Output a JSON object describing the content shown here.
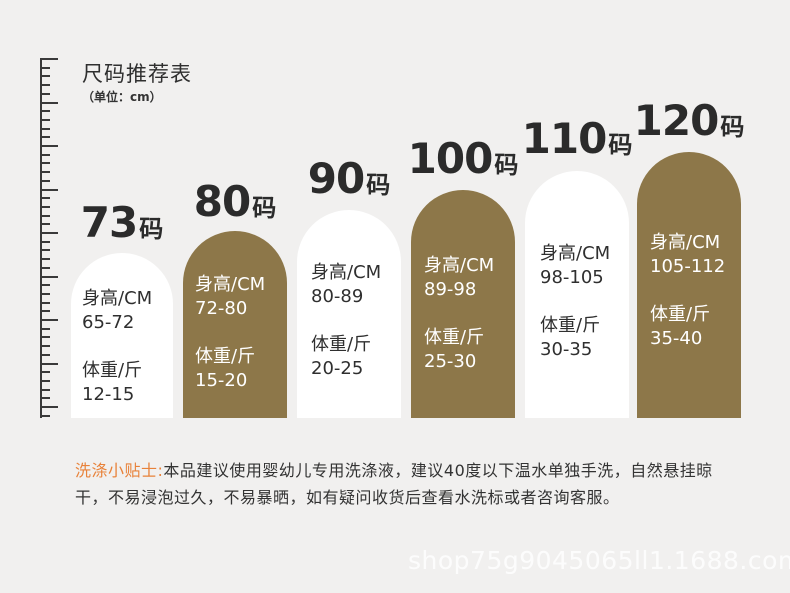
{
  "header": {
    "title": "尺码推荐表",
    "unit": "（单位：cm）"
  },
  "columns": [
    {
      "size": "73",
      "suffix": "码",
      "height_label": "身高/CM",
      "height": "65-72",
      "weight_label": "体重/斤",
      "weight": "12-15",
      "color": "#ffffff"
    },
    {
      "size": "80",
      "suffix": "码",
      "height_label": "身高/CM",
      "height": "72-80",
      "weight_label": "体重/斤",
      "weight": "15-20",
      "color": "#8d7749"
    },
    {
      "size": "90",
      "suffix": "码",
      "height_label": "身高/CM",
      "height": "80-89",
      "weight_label": "体重/斤",
      "weight": "20-25",
      "color": "#ffffff"
    },
    {
      "size": "100",
      "suffix": "码",
      "height_label": "身高/CM",
      "height": "89-98",
      "weight_label": "体重/斤",
      "weight": "25-30",
      "color": "#8d7749"
    },
    {
      "size": "110",
      "suffix": "码",
      "height_label": "身高/CM",
      "height": "98-105",
      "weight_label": "体重/斤",
      "weight": "30-35",
      "color": "#ffffff"
    },
    {
      "size": "120",
      "suffix": "码",
      "height_label": "身高/CM",
      "height": "105-112",
      "weight_label": "体重/斤",
      "weight": "35-40",
      "color": "#8d7749"
    }
  ],
  "tips": {
    "head": "洗涤小贴士:",
    "body": "本品建议使用婴幼儿专用洗涤液，建议40度以下温水单独手洗，自然悬挂晾干，不易浸泡过久，不易暴晒，如有疑问收货后查看水洗标或者咨询客服。"
  },
  "watermark": "shop75g9045065ll1.1688.com"
}
